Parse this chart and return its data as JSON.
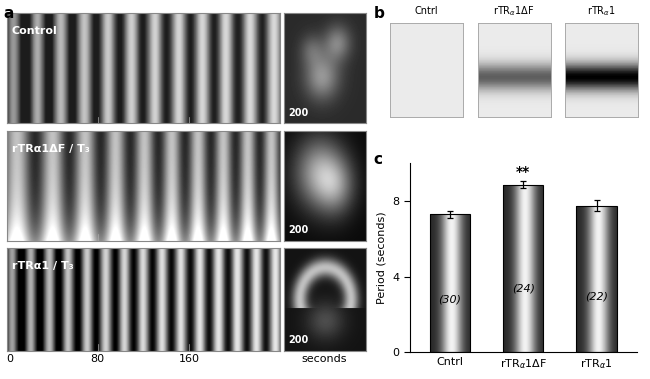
{
  "categories": [
    "Cntrl",
    "rTRα1ΔF",
    "rTRα1"
  ],
  "values": [
    7.3,
    8.85,
    7.75
  ],
  "errors": [
    0.18,
    0.18,
    0.28
  ],
  "ns": [
    "(30)",
    "(24)",
    "(22)"
  ],
  "ylabel": "Period (seconds)",
  "ylim": [
    0,
    10
  ],
  "yticks": [
    0,
    4,
    8
  ],
  "significance": [
    null,
    "**",
    null
  ],
  "bar_width": 0.55,
  "panel_b_labels": [
    "Cntrl",
    "rTRα1ΔF",
    "rTRα1"
  ],
  "panel_a_labels": [
    "Control",
    "rTRα1ΔF / T₃",
    "rTRα1 / T₃"
  ],
  "x_axis_ticks": [
    "0",
    "80",
    "160",
    "seconds"
  ],
  "fig_width": 6.5,
  "fig_height": 3.79
}
